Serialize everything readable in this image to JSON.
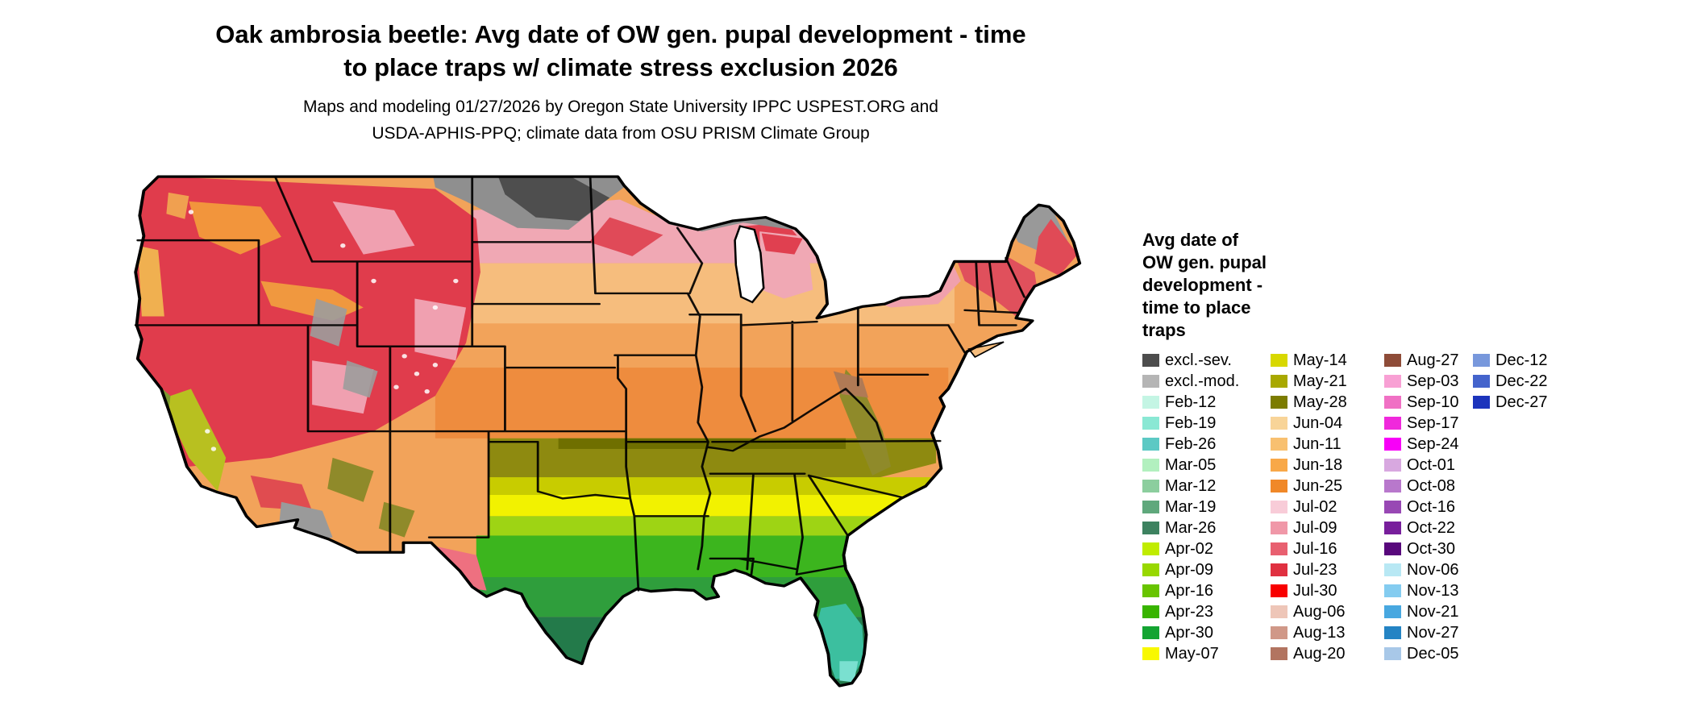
{
  "title": {
    "line1": "Oak ambrosia beetle: Avg date of OW gen. pupal development - time",
    "line2": "to place traps w/ climate stress exclusion 2026"
  },
  "subtitle": {
    "line1": "Maps and modeling 01/27/2026 by Oregon State University IPPC USPEST.ORG and",
    "line2": "USDA-APHIS-PPQ; climate data from OSU PRISM Climate Group"
  },
  "legend": {
    "title_lines": [
      "Avg date of",
      "OW gen. pupal",
      "development -",
      "time to place",
      "traps"
    ],
    "columns": [
      {
        "entries": [
          {
            "label": "excl.-sev.",
            "color": "#4d4d4d"
          },
          {
            "label": "excl.-mod.",
            "color": "#b5b5b5"
          },
          {
            "label": "Feb-12",
            "color": "#c4f5e4"
          },
          {
            "label": "Feb-19",
            "color": "#8ae8d4"
          },
          {
            "label": "Feb-26",
            "color": "#5cc9c4"
          },
          {
            "label": "Mar-05",
            "color": "#b2f0bf"
          },
          {
            "label": "Mar-12",
            "color": "#8cce9e"
          },
          {
            "label": "Mar-19",
            "color": "#5fa87c"
          },
          {
            "label": "Mar-26",
            "color": "#3d8260"
          },
          {
            "label": "Apr-02",
            "color": "#c0ec00"
          },
          {
            "label": "Apr-09",
            "color": "#98d800"
          },
          {
            "label": "Apr-16",
            "color": "#68c400"
          },
          {
            "label": "Apr-23",
            "color": "#38b400"
          },
          {
            "label": "Apr-30",
            "color": "#14a432"
          },
          {
            "label": "May-07",
            "color": "#f8f800"
          }
        ]
      },
      {
        "entries": [
          {
            "label": "May-14",
            "color": "#d8d800"
          },
          {
            "label": "May-21",
            "color": "#a8a800"
          },
          {
            "label": "May-28",
            "color": "#7c7c00"
          },
          {
            "label": "Jun-04",
            "color": "#f8d498"
          },
          {
            "label": "Jun-11",
            "color": "#f8c070"
          },
          {
            "label": "Jun-18",
            "color": "#f8a848"
          },
          {
            "label": "Jun-25",
            "color": "#f08828"
          },
          {
            "label": "Jul-02",
            "color": "#f8ccd8"
          },
          {
            "label": "Jul-09",
            "color": "#f098a8"
          },
          {
            "label": "Jul-16",
            "color": "#e86070"
          },
          {
            "label": "Jul-23",
            "color": "#e03040"
          },
          {
            "label": "Jul-30",
            "color": "#f80000"
          },
          {
            "label": "Aug-06",
            "color": "#eec6b8"
          },
          {
            "label": "Aug-13",
            "color": "#d09888"
          },
          {
            "label": "Aug-20",
            "color": "#b27460"
          }
        ]
      },
      {
        "entries": [
          {
            "label": "Aug-27",
            "color": "#8e4c38"
          },
          {
            "label": "Sep-03",
            "color": "#f8a0d4"
          },
          {
            "label": "Sep-10",
            "color": "#f070c4"
          },
          {
            "label": "Sep-17",
            "color": "#f028dc"
          },
          {
            "label": "Sep-24",
            "color": "#f800f8"
          },
          {
            "label": "Oct-01",
            "color": "#d8a8e0"
          },
          {
            "label": "Oct-08",
            "color": "#b878cc"
          },
          {
            "label": "Oct-16",
            "color": "#9848b4"
          },
          {
            "label": "Oct-22",
            "color": "#781f9c"
          },
          {
            "label": "Oct-30",
            "color": "#58087c"
          },
          {
            "label": "Nov-06",
            "color": "#b8e8f4"
          },
          {
            "label": "Nov-13",
            "color": "#84ccf0"
          },
          {
            "label": "Nov-21",
            "color": "#48a8e0"
          },
          {
            "label": "Nov-27",
            "color": "#2484c4"
          },
          {
            "label": "Dec-05",
            "color": "#a8c8e8"
          }
        ]
      },
      {
        "entries": [
          {
            "label": "Dec-12",
            "color": "#7898dc"
          },
          {
            "label": "Dec-22",
            "color": "#4464cc"
          },
          {
            "label": "Dec-27",
            "color": "#1c34bc"
          }
        ]
      }
    ]
  },
  "map": {
    "description": "Continental US choropleth raster of average date of overwintering generation pupal development (time to place traps), 2026",
    "gradient_north_to_south": [
      "exclusion gray (north)",
      "Jul pinks/reds (mountain west & northern tier)",
      "Jun oranges (midwest)",
      "May olives/yellows (mid-south)",
      "Apr greens (gulf south)",
      "Feb-Mar teals (south Florida)"
    ]
  }
}
